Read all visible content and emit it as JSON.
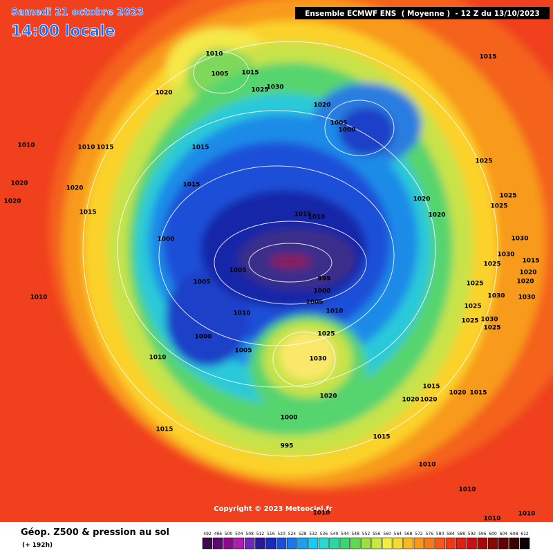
{
  "header": {
    "date": "Samedi 21 octobre 2023",
    "time": "14:00 locale",
    "model": "Ensemble ECMWF ENS  ( Moyenne )  - 12 Z du 13/10/2023"
  },
  "footer": {
    "copyright": "Copyright © 2023 Meteociel.fr",
    "title": "Géop. Z500 & pression au sol",
    "lead": "(+ 192h)"
  },
  "legend": {
    "values": [
      "492",
      "496",
      "500",
      "504",
      "508",
      "512",
      "516",
      "520",
      "524",
      "528",
      "532",
      "536",
      "540",
      "544",
      "548",
      "552",
      "556",
      "560",
      "564",
      "568",
      "572",
      "576",
      "580",
      "584",
      "588",
      "592",
      "596",
      "600",
      "604",
      "608",
      "612"
    ]
  },
  "isobar_labels": [
    "1010",
    "1005",
    "1015",
    "1025",
    "1030",
    "1020",
    "1020",
    "1005",
    "1000",
    "1015",
    "1010",
    "1010",
    "1015",
    "1020",
    "1020",
    "1020",
    "1015",
    "1015",
    "1015",
    "1025",
    "1025",
    "1025",
    "1020",
    "1020",
    "1015",
    "1010",
    "1000",
    "1005",
    "1005",
    "995",
    "1000",
    "1005",
    "1010",
    "1010",
    "1025",
    "1000",
    "1010",
    "1005",
    "1030",
    "1020",
    "1015",
    "1020",
    "1020",
    "1020",
    "1015",
    "1000",
    "995",
    "1015",
    "1015",
    "1010",
    "1010",
    "1010",
    "1010",
    "1010",
    "1010",
    "1030",
    "1030",
    "1025",
    "1025",
    "1030",
    "1025",
    "1025",
    "1030",
    "1020",
    "1015",
    "1025",
    "1030",
    "1020"
  ]
}
